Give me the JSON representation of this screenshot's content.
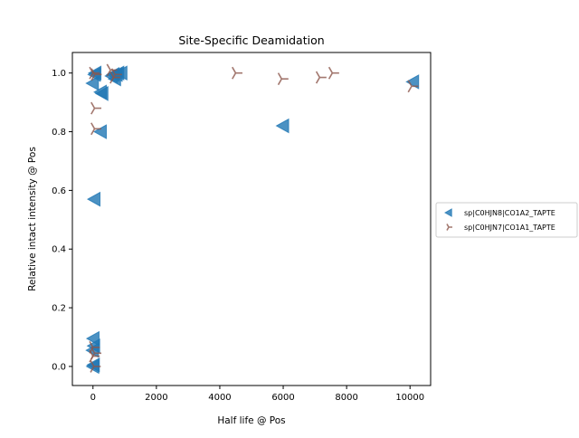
{
  "chart_data": {
    "type": "scatter",
    "title": "Site-Specific Deamidation",
    "xlabel": "Half life @ Pos",
    "ylabel": "Relative intact intensity @ Pos",
    "xlim": [
      -650,
      10650
    ],
    "ylim": [
      -0.065,
      1.07
    ],
    "xticks": [
      0,
      2000,
      4000,
      6000,
      8000,
      10000
    ],
    "yticks": [
      0.0,
      0.2,
      0.4,
      0.6,
      0.8,
      1.0
    ],
    "xtick_labels": [
      "0",
      "2000",
      "4000",
      "6000",
      "8000",
      "10000"
    ],
    "ytick_labels": [
      "0.0",
      "0.2",
      "0.4",
      "0.6",
      "0.8",
      "1.0"
    ],
    "grid": false,
    "legend_position": "outside-right",
    "series": [
      {
        "name": "sp|C0HJN8|CO1A2_TAPTE",
        "marker": "triangle-left",
        "color": "#1f77b4",
        "points": [
          [
            0,
            0.965
          ],
          [
            80,
            1.0
          ],
          [
            60,
            0.995
          ],
          [
            300,
            0.93
          ],
          [
            250,
            0.935
          ],
          [
            600,
            0.99
          ],
          [
            650,
            0.995
          ],
          [
            700,
            0.98
          ],
          [
            800,
            1.0
          ],
          [
            900,
            1.0
          ],
          [
            750,
            0.995
          ],
          [
            250,
            0.8
          ],
          [
            50,
            0.57
          ],
          [
            6000,
            0.82
          ],
          [
            10100,
            0.97
          ],
          [
            20,
            0.095
          ],
          [
            40,
            0.07
          ],
          [
            0,
            0.055
          ],
          [
            30,
            0.005
          ],
          [
            10,
            0.0
          ]
        ]
      },
      {
        "name": "sp|C0HJN7|CO1A1_TAPTE",
        "marker": "tri-right",
        "color": "#8c564b",
        "points": [
          [
            0,
            1.0
          ],
          [
            60,
            0.995
          ],
          [
            550,
            1.01
          ],
          [
            650,
            0.985
          ],
          [
            700,
            0.995
          ],
          [
            4500,
            1.0
          ],
          [
            5950,
            0.98
          ],
          [
            7150,
            0.985
          ],
          [
            7550,
            1.0
          ],
          [
            10050,
            0.955
          ],
          [
            50,
            0.88
          ],
          [
            50,
            0.81
          ],
          [
            0,
            0.065
          ],
          [
            50,
            0.045
          ],
          [
            0,
            0.035
          ],
          [
            30,
            0.0
          ]
        ]
      }
    ]
  }
}
